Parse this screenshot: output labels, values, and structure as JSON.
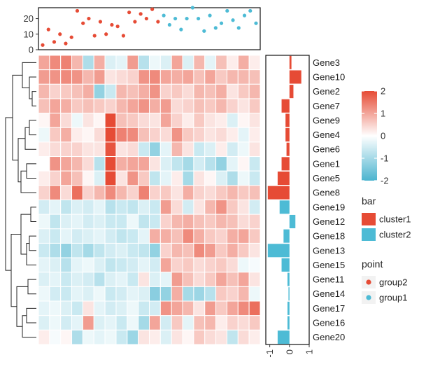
{
  "chart_data": {
    "type": "heatmap",
    "rows": [
      "Gene3",
      "Gene10",
      "Gene2",
      "Gene7",
      "Gene9",
      "Gene4",
      "Gene6",
      "Gene1",
      "Gene5",
      "Gene8",
      "Gene19",
      "Gene12",
      "Gene18",
      "Gene13",
      "Gene15",
      "Gene11",
      "Gene14",
      "Gene17",
      "Gene16",
      "Gene20"
    ],
    "n_columns": 20,
    "matrix": [
      [
        1.0,
        1.3,
        1.4,
        0.8,
        -0.9,
        0.9,
        -0.4,
        -0.3,
        1.1,
        -0.8,
        -0.2,
        -0.4,
        1.0,
        -0.4,
        0.8,
        -0.3,
        0.7,
        0.2,
        0.9,
        0.2
      ],
      [
        1.1,
        1.2,
        1.3,
        1.2,
        0.8,
        1.1,
        0.3,
        0.4,
        0.5,
        1.2,
        1.3,
        1.0,
        0.9,
        1.0,
        0.7,
        1.0,
        0.6,
        0.8,
        0.8,
        0.7
      ],
      [
        0.8,
        0.5,
        0.6,
        0.7,
        0.9,
        -1.2,
        -0.6,
        0.8,
        0.7,
        0.9,
        1.2,
        0.5,
        0.6,
        0.4,
        0.8,
        0.7,
        0.9,
        0.3,
        0.6,
        0.8
      ],
      [
        0.7,
        1.0,
        0.9,
        0.6,
        0.7,
        0.6,
        0.5,
        0.8,
        1.0,
        1.2,
        0.9,
        1.1,
        0.4,
        0.5,
        0.7,
        0.6,
        0.8,
        0.5,
        0.3,
        0.6
      ],
      [
        0.1,
        1.0,
        0.4,
        -0.2,
        0.3,
        0.1,
        2.0,
        0.7,
        0.6,
        0.4,
        0.3,
        1.0,
        0.5,
        0.2,
        0.6,
        0.3,
        0.2,
        -0.4,
        0.1,
        0.3
      ],
      [
        -0.2,
        0.6,
        0.9,
        0.2,
        0.1,
        0.4,
        2.0,
        1.4,
        1.3,
        0.7,
        0.5,
        0.4,
        1.2,
        0.6,
        0.5,
        0.3,
        0.4,
        0.2,
        -0.3,
        0.2
      ],
      [
        0.2,
        0.4,
        0.5,
        0.5,
        0.3,
        0.3,
        1.9,
        0.3,
        0.4,
        -0.6,
        -1.2,
        -0.3,
        0.8,
        0.3,
        -0.6,
        -0.4,
        0.2,
        -0.5,
        -0.2,
        0.3
      ],
      [
        0,
        1.2,
        1.0,
        0.8,
        0.4,
        -0.8,
        2.0,
        0.9,
        1.0,
        1.0,
        0.3,
        -0.4,
        -0.7,
        -1.0,
        -0.5,
        -0.8,
        -1.2,
        -0.3,
        0.1,
        -0.6
      ],
      [
        0.2,
        0.5,
        1.0,
        0.7,
        0.1,
        -0.4,
        2.0,
        0.3,
        1.2,
        0.6,
        -0.7,
        -0.3,
        0.2,
        -1.0,
        0.3,
        0.1,
        -0.4,
        -0.9,
        -0.2,
        -0.6
      ],
      [
        0.5,
        1.3,
        0.4,
        1.6,
        0.5,
        0.8,
        1.3,
        0.8,
        0.5,
        1.4,
        0.5,
        0.6,
        0.3,
        0.9,
        0.5,
        0.4,
        0.6,
        0.8,
        0.6,
        0.7
      ],
      [
        -0.5,
        -0.3,
        -0.7,
        -0.4,
        -0.5,
        -0.3,
        -0.8,
        -0.6,
        -0.7,
        -0.4,
        -0.6,
        1.1,
        0.4,
        -0.5,
        0.3,
        0.8,
        1.2,
        0.6,
        0.3,
        -0.5
      ],
      [
        -0.2,
        -0.7,
        -0.4,
        -0.3,
        -0.5,
        -0.4,
        -0.6,
        -0.6,
        -0.2,
        -0.7,
        -0.6,
        0.5,
        0.8,
        0.9,
        0.7,
        0.6,
        0.8,
        0.7,
        0.4,
        0.5
      ],
      [
        -0.4,
        -0.6,
        -0.3,
        -0.5,
        -0.4,
        -0.3,
        -0.5,
        -0.7,
        -0.6,
        -0.3,
        0.9,
        0.9,
        0.7,
        1.3,
        0.9,
        0.6,
        0.5,
        0.9,
        1.0,
        0.6
      ],
      [
        -0.6,
        -0.9,
        -1.2,
        -0.7,
        -1.0,
        -0.7,
        -0.5,
        -0.4,
        -0.6,
        -0.7,
        -1.2,
        0.5,
        0.8,
        0.7,
        1.3,
        1.1,
        0.6,
        0.9,
        0.6,
        0.3
      ],
      [
        -0.3,
        -0.4,
        -0.8,
        -0.3,
        -0.2,
        -0.4,
        -0.7,
        -0.6,
        -0.5,
        -0.3,
        -0.5,
        1.0,
        0.5,
        0.6,
        0.4,
        0.5,
        0.6,
        0.4,
        -0.2,
        -0.1
      ],
      [
        -0.4,
        -0.3,
        -0.6,
        -0.4,
        -0.5,
        -0.8,
        -0.4,
        -0.3,
        -0.6,
        0.3,
        -0.4,
        -0.3,
        1.1,
        0.7,
        0.4,
        0.6,
        1.0,
        0.7,
        1.0,
        0.3
      ],
      [
        -0.2,
        -0.5,
        -0.6,
        -0.3,
        -0.4,
        -0.2,
        -0.6,
        -0.5,
        -0.3,
        -0.4,
        -1.3,
        -1.2,
        0.9,
        -1.0,
        -1.1,
        -0.8,
        0.6,
        0.5,
        0.8,
        -0.2
      ],
      [
        -0.3,
        -0.2,
        -0.4,
        -0.6,
        0.3,
        -0.3,
        -0.5,
        -0.4,
        -0.2,
        -0.6,
        -0.5,
        1.2,
        1.0,
        0.8,
        0.3,
        1.1,
        0.6,
        1.0,
        1.3,
        1.6
      ],
      [
        -0.4,
        -0.2,
        -0.5,
        -0.3,
        1.1,
        -0.4,
        -0.3,
        -0.6,
        -0.2,
        -1.0,
        1.0,
        -0.5,
        0.6,
        -0.3,
        0.7,
        0.8,
        0.2,
        0.5,
        0.4,
        0.6
      ],
      [
        0.2,
        -0.1,
        0.1,
        -0.9,
        -0.2,
        -0.3,
        -0.2,
        -0.6,
        -1.1,
        0.3,
        0.2,
        -0.4,
        0.3,
        0.1,
        0.6,
        0.4,
        0.3,
        -0.7,
        0.4,
        0.2
      ]
    ],
    "bar": {
      "values": [
        0.1,
        0.6,
        0.2,
        -0.4,
        -0.2,
        -0.2,
        -0.15,
        -0.4,
        -0.6,
        -1.1,
        -0.5,
        0.3,
        -0.3,
        -1.1,
        -0.4,
        -0.1,
        -0.05,
        -0.1,
        -0.1,
        -0.6
      ],
      "clusters": [
        "cluster1",
        "cluster1",
        "cluster1",
        "cluster1",
        "cluster1",
        "cluster1",
        "cluster1",
        "cluster1",
        "cluster1",
        "cluster1",
        "cluster2",
        "cluster2",
        "cluster2",
        "cluster2",
        "cluster2",
        "cluster2",
        "cluster2",
        "cluster2",
        "cluster2",
        "cluster2"
      ],
      "xlim": [
        -1.2,
        1
      ],
      "x_ticks": [
        -1,
        0,
        1
      ]
    },
    "points": {
      "values": [
        3,
        13,
        5,
        10,
        4,
        8,
        25,
        17,
        20,
        9,
        18,
        10,
        16,
        15,
        9,
        24,
        18,
        23,
        20,
        26,
        18,
        22,
        16,
        20,
        13,
        20,
        27,
        20,
        12,
        22,
        14,
        17,
        25,
        19,
        14,
        22,
        25,
        17
      ],
      "groups": [
        "group2",
        "group2",
        "group2",
        "group2",
        "group2",
        "group2",
        "group2",
        "group2",
        "group2",
        "group2",
        "group2",
        "group2",
        "group2",
        "group2",
        "group2",
        "group2",
        "group2",
        "group2",
        "group2",
        "group2",
        "group2",
        "group1",
        "group1",
        "group1",
        "group1",
        "group1",
        "group1",
        "group1",
        "group1",
        "group1",
        "group1",
        "group1",
        "group1",
        "group1",
        "group1",
        "group1",
        "group1",
        "group1"
      ],
      "ylim": [
        0,
        27
      ],
      "y_ticks": [
        0,
        10,
        20
      ]
    },
    "color_scale": {
      "breaks": [
        2,
        1,
        0,
        -1,
        -2
      ],
      "low": "#4BB4CF",
      "mid": "#FFFFFF",
      "high": "#E64B35"
    },
    "legends": [
      {
        "title": "bar",
        "entries": [
          {
            "label": "cluster1",
            "color": "#E64B35"
          },
          {
            "label": "cluster2",
            "color": "#4DBBD5"
          }
        ]
      },
      {
        "title": "point",
        "entries": [
          {
            "label": "group2",
            "color": "#E64B35"
          },
          {
            "label": "group1",
            "color": "#4DBBD5"
          }
        ]
      }
    ]
  }
}
